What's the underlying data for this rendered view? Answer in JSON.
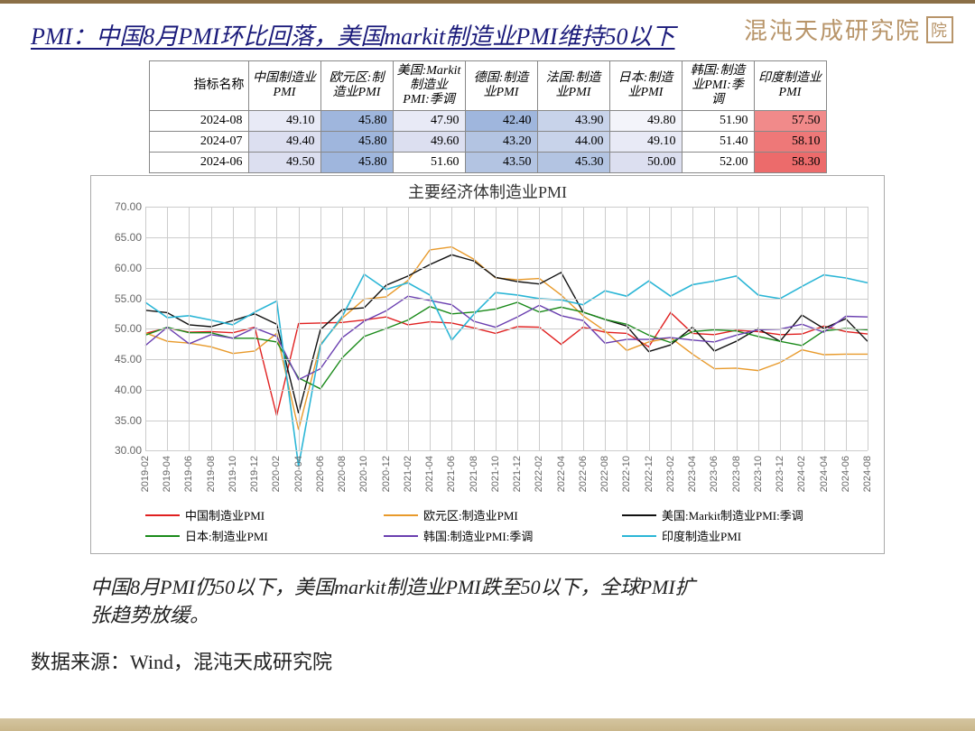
{
  "title": "PMI：中国8月PMI环比回落，美国markit制造业PMI维持50以下",
  "logo_text": "混沌天成研究院",
  "table": {
    "header_row_label": "指标名称",
    "columns": [
      "中国制造业PMI",
      "欧元区:制造业PMI",
      "美国:Markit制造业PMI:季调",
      "德国:制造业PMI",
      "法国:制造业PMI",
      "日本:制造业PMI",
      "韩国:制造业PMI:季调",
      "印度制造业PMI"
    ],
    "rows": [
      {
        "label": "2024-08",
        "vals": [
          "49.10",
          "45.80",
          "47.90",
          "42.40",
          "43.90",
          "49.80",
          "51.90",
          "57.50"
        ],
        "bg": [
          "#e8eaf6",
          "#9fb6dd",
          "#e8eaf6",
          "#9fb6dd",
          "#c8d3ea",
          "#f3f4fa",
          "#ffffff",
          "#f18a8a"
        ]
      },
      {
        "label": "2024-07",
        "vals": [
          "49.40",
          "45.80",
          "49.60",
          "43.20",
          "44.00",
          "49.10",
          "51.40",
          "58.10"
        ],
        "bg": [
          "#dcdff0",
          "#9fb6dd",
          "#dcdff0",
          "#b3c4e2",
          "#c8d3ea",
          "#e8eaf6",
          "#ffffff",
          "#ee7878"
        ]
      },
      {
        "label": "2024-06",
        "vals": [
          "49.50",
          "45.80",
          "51.60",
          "43.50",
          "45.30",
          "50.00",
          "52.00",
          "58.30"
        ],
        "bg": [
          "#dcdff0",
          "#9fb6dd",
          "#ffffff",
          "#b3c4e2",
          "#b3c4e2",
          "#dcdff0",
          "#ffffff",
          "#ec6b6b"
        ]
      }
    ]
  },
  "chart": {
    "title": "主要经济体制造业PMI",
    "ylim": [
      30,
      70
    ],
    "ytick_step": 5,
    "y_format_decimals": 2,
    "x_labels": [
      "2019-02",
      "2019-04",
      "2019-06",
      "2019-08",
      "2019-10",
      "2019-12",
      "2020-02",
      "2020-04",
      "2020-06",
      "2020-08",
      "2020-10",
      "2020-12",
      "2021-02",
      "2021-04",
      "2021-06",
      "2021-08",
      "2021-10",
      "2021-12",
      "2022-02",
      "2022-04",
      "2022-06",
      "2022-08",
      "2022-10",
      "2022-12",
      "2023-02",
      "2023-04",
      "2023-06",
      "2023-08",
      "2023-10",
      "2023-12",
      "2024-02",
      "2024-04",
      "2024-06",
      "2024-08"
    ],
    "series": [
      {
        "name": "中国制造业PMI",
        "color": "#e02020",
        "width": 1.4,
        "values": [
          49.2,
          50.1,
          49.4,
          49.5,
          49.3,
          50.2,
          35.7,
          50.8,
          50.9,
          51.0,
          51.4,
          51.9,
          50.6,
          51.1,
          50.9,
          50.1,
          49.2,
          50.3,
          50.2,
          47.4,
          50.2,
          49.4,
          49.2,
          47.0,
          52.6,
          49.2,
          49.0,
          49.7,
          49.5,
          49.0,
          49.1,
          50.4,
          49.5,
          49.1
        ]
      },
      {
        "name": "欧元区:制造业PMI",
        "color": "#e89a2b",
        "width": 1.4,
        "values": [
          49.3,
          47.9,
          47.6,
          47.0,
          45.9,
          46.3,
          49.2,
          33.4,
          47.4,
          51.7,
          54.8,
          55.2,
          57.9,
          62.9,
          63.4,
          61.4,
          58.3,
          58.0,
          58.2,
          55.5,
          52.1,
          49.6,
          46.4,
          47.8,
          48.5,
          45.8,
          43.4,
          43.5,
          43.1,
          44.4,
          46.5,
          45.7,
          45.8,
          45.8
        ]
      },
      {
        "name": "美国:Markit制造业PMI:季调",
        "color": "#111111",
        "width": 1.4,
        "values": [
          53.0,
          52.6,
          50.6,
          50.3,
          51.3,
          52.4,
          50.7,
          36.1,
          49.8,
          53.1,
          53.4,
          57.1,
          58.6,
          60.5,
          62.1,
          61.1,
          58.4,
          57.7,
          57.3,
          59.2,
          52.7,
          51.5,
          50.4,
          46.2,
          47.3,
          50.2,
          46.3,
          47.9,
          50.0,
          47.9,
          52.2,
          50.0,
          51.6,
          47.9
        ]
      },
      {
        "name": "日本:制造业PMI",
        "color": "#1a8a1a",
        "width": 1.4,
        "values": [
          48.9,
          50.2,
          49.3,
          49.3,
          48.4,
          48.4,
          47.8,
          41.9,
          40.1,
          45.2,
          48.7,
          50.0,
          51.4,
          53.6,
          52.4,
          52.7,
          53.2,
          54.3,
          52.7,
          53.5,
          52.7,
          51.5,
          50.7,
          48.9,
          47.7,
          49.5,
          49.8,
          49.6,
          48.7,
          47.9,
          47.2,
          49.6,
          50.0,
          49.8
        ]
      },
      {
        "name": "韩国:制造业PMI:季调",
        "color": "#6a3fb0",
        "width": 1.4,
        "values": [
          47.2,
          50.2,
          47.5,
          49.0,
          48.4,
          50.1,
          48.7,
          41.6,
          43.4,
          48.5,
          51.2,
          52.9,
          55.3,
          54.6,
          53.9,
          51.2,
          50.2,
          51.9,
          53.8,
          52.1,
          51.3,
          47.6,
          48.2,
          48.2,
          48.5,
          48.1,
          47.8,
          48.9,
          49.8,
          49.9,
          50.7,
          49.4,
          52.0,
          51.9
        ]
      },
      {
        "name": "印度制造业PMI",
        "color": "#2bb6d6",
        "width": 1.6,
        "values": [
          54.3,
          51.8,
          52.1,
          51.4,
          50.6,
          52.7,
          54.5,
          27.4,
          47.2,
          52.0,
          58.9,
          56.4,
          57.5,
          55.5,
          48.1,
          52.3,
          55.9,
          55.5,
          54.9,
          54.7,
          53.9,
          56.2,
          55.3,
          57.8,
          55.3,
          57.2,
          57.8,
          58.6,
          55.5,
          54.9,
          56.9,
          58.8,
          58.3,
          57.5
        ]
      }
    ],
    "legend_labels": [
      "中国制造业PMI",
      "欧元区:制造业PMI",
      "美国:Markit制造业PMI:季调",
      "日本:制造业PMI",
      "韩国:制造业PMI:季调",
      "印度制造业PMI"
    ],
    "legend_colors": [
      "#e02020",
      "#e89a2b",
      "#111111",
      "#1a8a1a",
      "#6a3fb0",
      "#2bb6d6"
    ],
    "grid_color": "#cccccc",
    "background_color": "#ffffff"
  },
  "body_text_l1": "中国8月PMI仍50以下，美国markit制造业PMI跌至50以下，全球PMI扩",
  "body_text_l2": "张趋势放缓。",
  "source_text": "数据来源：Wind，混沌天成研究院"
}
